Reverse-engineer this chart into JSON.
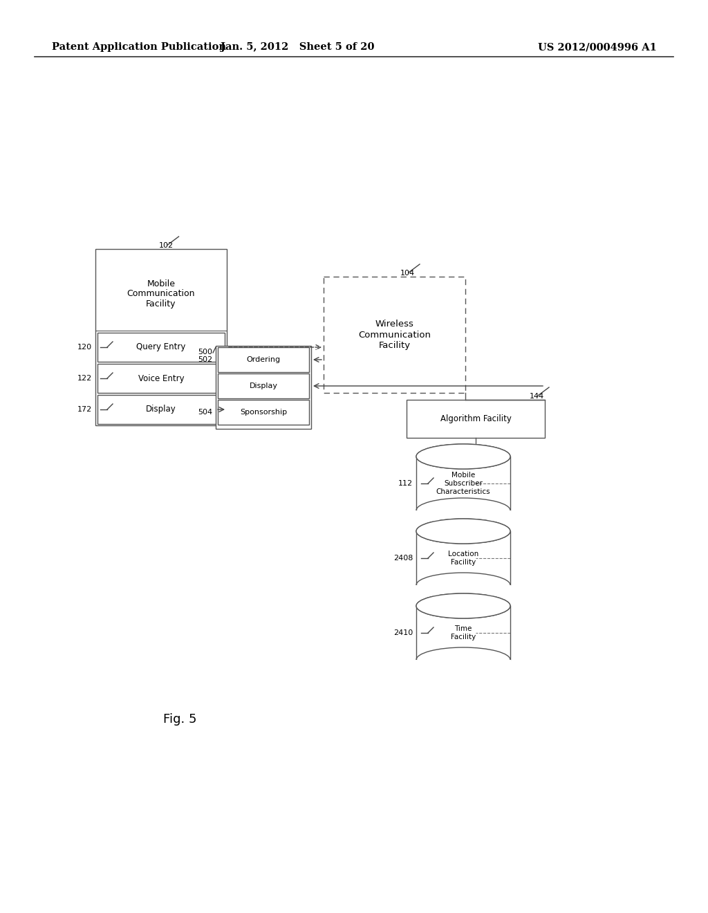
{
  "background_color": "#ffffff",
  "header_left": "Patent Application Publication",
  "header_mid": "Jan. 5, 2012   Sheet 5 of 20",
  "header_right": "US 2012/0004996 A1",
  "fig_label": "Fig. 5"
}
